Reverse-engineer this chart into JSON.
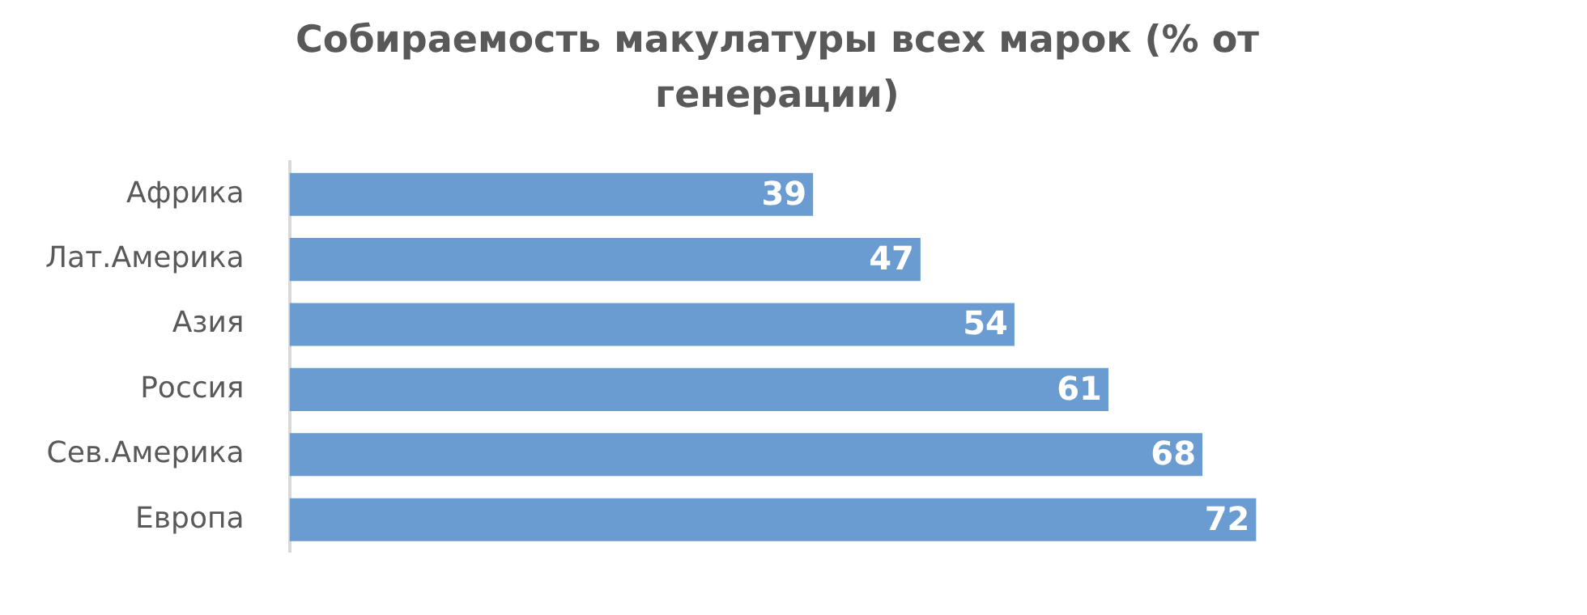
{
  "chart_data": {
    "type": "bar",
    "orientation": "horizontal",
    "title": "Собираемость макулатуры всех марок (% от генерации)",
    "categories": [
      "Африка",
      "Лат.Америка",
      "Азия",
      "Россия",
      "Сев.Америка",
      "Европа"
    ],
    "values": [
      39,
      47,
      54,
      61,
      68,
      72
    ],
    "color": "#6a9bd1",
    "tick_labels": "y",
    "data_labels": true
  }
}
